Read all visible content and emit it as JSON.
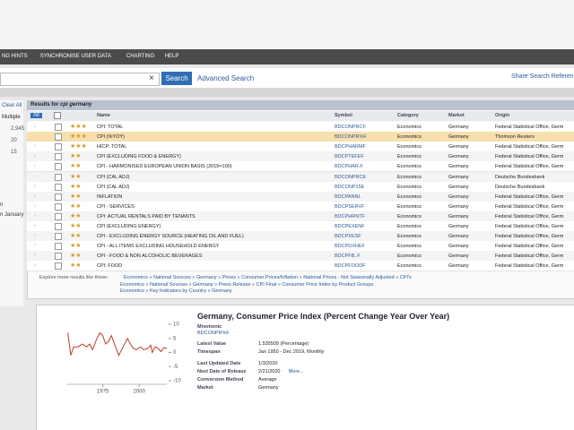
{
  "menu": [
    "NG HINTS",
    "SYNCHRONISE USER DATA",
    "CHARTING",
    "HELP"
  ],
  "search": {
    "button": "Search",
    "advanced": "Advanced Search",
    "share": "Share Search Referen"
  },
  "sidebar": {
    "clear": "Clear All",
    "multiple": "Multiple",
    "counts": [
      "2,945",
      "20",
      "15"
    ],
    "labels": [
      "n",
      "n January"
    ]
  },
  "results": {
    "title": "Results for",
    "query": "cpi germany",
    "columns": [
      "All",
      "Name",
      "Symbol",
      "Category",
      "Market",
      "Origin"
    ],
    "rows": [
      {
        "stars": 3,
        "name": "CPI: TOTAL",
        "symbol": "BDCONPRCF",
        "category": "Economics",
        "market": "Germany",
        "origin": "Federal Statistical Office, Germ"
      },
      {
        "stars": 3,
        "name": "CPI (%YOY)",
        "symbol": "BDCONPR%F",
        "category": "Economics",
        "market": "Germany",
        "origin": "Thomson Reuters"
      },
      {
        "stars": 3,
        "name": "HICP: TOTAL",
        "symbol": "BDCPHARMF",
        "category": "Economics",
        "market": "Germany",
        "origin": "Federal Statistical Office, Germ"
      },
      {
        "stars": 2,
        "name": "CPI (EXCLUDING FOOD & ENERGY)",
        "symbol": "BDCPTEFEF",
        "category": "Economics",
        "market": "Germany",
        "origin": "Federal Statistical Office, Germ"
      },
      {
        "stars": 2,
        "name": "CPI - HARMONISED EUROPEAN UNION BASIS (2015=100)",
        "symbol": "BDCPHAR.F",
        "category": "Economics",
        "market": "Germany",
        "origin": "Federal Statistical Office, Germ"
      },
      {
        "stars": 2,
        "name": "CPI (CAL ADJ)",
        "symbol": "BDCONPRCE",
        "category": "Economics",
        "market": "Germany",
        "origin": "Deutsche Bundesbank"
      },
      {
        "stars": 2,
        "name": "CPI (CAL ADJ)",
        "symbol": "BDCONP15E",
        "category": "Economics",
        "market": "Germany",
        "origin": "Deutsche Bundesbank"
      },
      {
        "stars": 2,
        "name": "INFLATION",
        "symbol": "BDCPANNL",
        "category": "Economics",
        "market": "Germany",
        "origin": "Federal Statistical Office, Germ"
      },
      {
        "stars": 2,
        "name": "CPI - SERVICES",
        "symbol": "BDCPSERVF",
        "category": "Economics",
        "market": "Germany",
        "origin": "Federal Statistical Office, Germ"
      },
      {
        "stars": 2,
        "name": "CPI: ACTUAL RENTALS PAID BY TENANTS",
        "symbol": "BDCPHRNTF",
        "category": "Economics",
        "market": "Germany",
        "origin": "Federal Statistical Office, Germ"
      },
      {
        "stars": 2,
        "name": "CPI (EXCLUDING ENERGY)",
        "symbol": "BDCPEXENF",
        "category": "Economics",
        "market": "Germany",
        "origin": "Federal Statistical Office, Germ"
      },
      {
        "stars": 2,
        "name": "CPI - EXCLUDING ENERGY SOURCE (HEATING OIL AND FUEL)",
        "symbol": "BDCPXESF",
        "category": "Economics",
        "market": "Germany",
        "origin": "Federal Statistical Office, Germ"
      },
      {
        "stars": 2,
        "name": "CPI - ALL ITEMS EXCLUDING HOUSEHOLD ENERGY",
        "symbol": "BDCPDXHEF",
        "category": "Economics",
        "market": "Germany",
        "origin": "Federal Statistical Office, Germ"
      },
      {
        "stars": 2,
        "name": "CPI - FOOD & NON ALCOHOLIC BEVERAGES",
        "symbol": "BDCPFB..F",
        "category": "Economics",
        "market": "Germany",
        "origin": "Federal Statistical Office, Germ"
      },
      {
        "stars": 2,
        "name": "CPI: FOOD",
        "symbol": "BDCPFOODF",
        "category": "Economics",
        "market": "Germany",
        "origin": "Federal Statistical Office, Germ"
      }
    ],
    "explore": {
      "label": "Explore more results like these:",
      "paths": [
        "Economics » National Sources » Germany » Prices » Consumer Prices/Inflation » National Prices - Not Seasonally Adjusted » CPI's",
        "Economics » National Sources » Germany » Press Release » CPI Final » Consumer Price Index by Product Groups",
        "Economics » Key Indicators by Country » Germany"
      ]
    }
  },
  "detail": {
    "title": "Germany, Consumer Price Index (Percent Change Year Over Year)",
    "fields": [
      {
        "label": "Mnemonic",
        "value": "BDCONPR%F"
      },
      {
        "label": "Latest Value",
        "value": "1.535509 (Percentage)"
      },
      {
        "label": "Timespan",
        "value": "Jan 1950 - Dec 2019, Monthly"
      },
      {
        "label": "Last Updated Date",
        "value": "1/3/2020"
      },
      {
        "label": "Next Date of Release",
        "value": "2/21/2020",
        "link": "More..."
      },
      {
        "label": "Conversion Method",
        "value": "Average"
      },
      {
        "label": "Market",
        "value": "Germany"
      }
    ]
  },
  "chart_data": {
    "type": "line",
    "color": "#c0392b",
    "x": [
      1951,
      1953,
      1955,
      1958,
      1961,
      1964,
      1966,
      1968,
      1971,
      1973,
      1975,
      1977,
      1979,
      1981,
      1983,
      1986,
      1988,
      1990,
      1992,
      1994,
      1996,
      1998,
      2001,
      2003,
      2006,
      2008,
      2009,
      2011,
      2013,
      2015,
      2017,
      2019
    ],
    "values": [
      7,
      -1,
      2,
      2,
      3,
      2,
      3,
      1,
      5,
      7,
      6,
      3,
      4,
      6,
      3,
      -1,
      1,
      3,
      5,
      3,
      1.5,
      1,
      2,
      1,
      1.5,
      2.6,
      0,
      2,
      1.5,
      0.3,
      1.7,
      1.5
    ],
    "xlim": [
      1950,
      2019
    ],
    "ylim": [
      -10,
      10
    ],
    "xticks": [
      1975,
      2000
    ],
    "yticks": [
      10,
      5,
      0,
      -5,
      -10
    ]
  }
}
